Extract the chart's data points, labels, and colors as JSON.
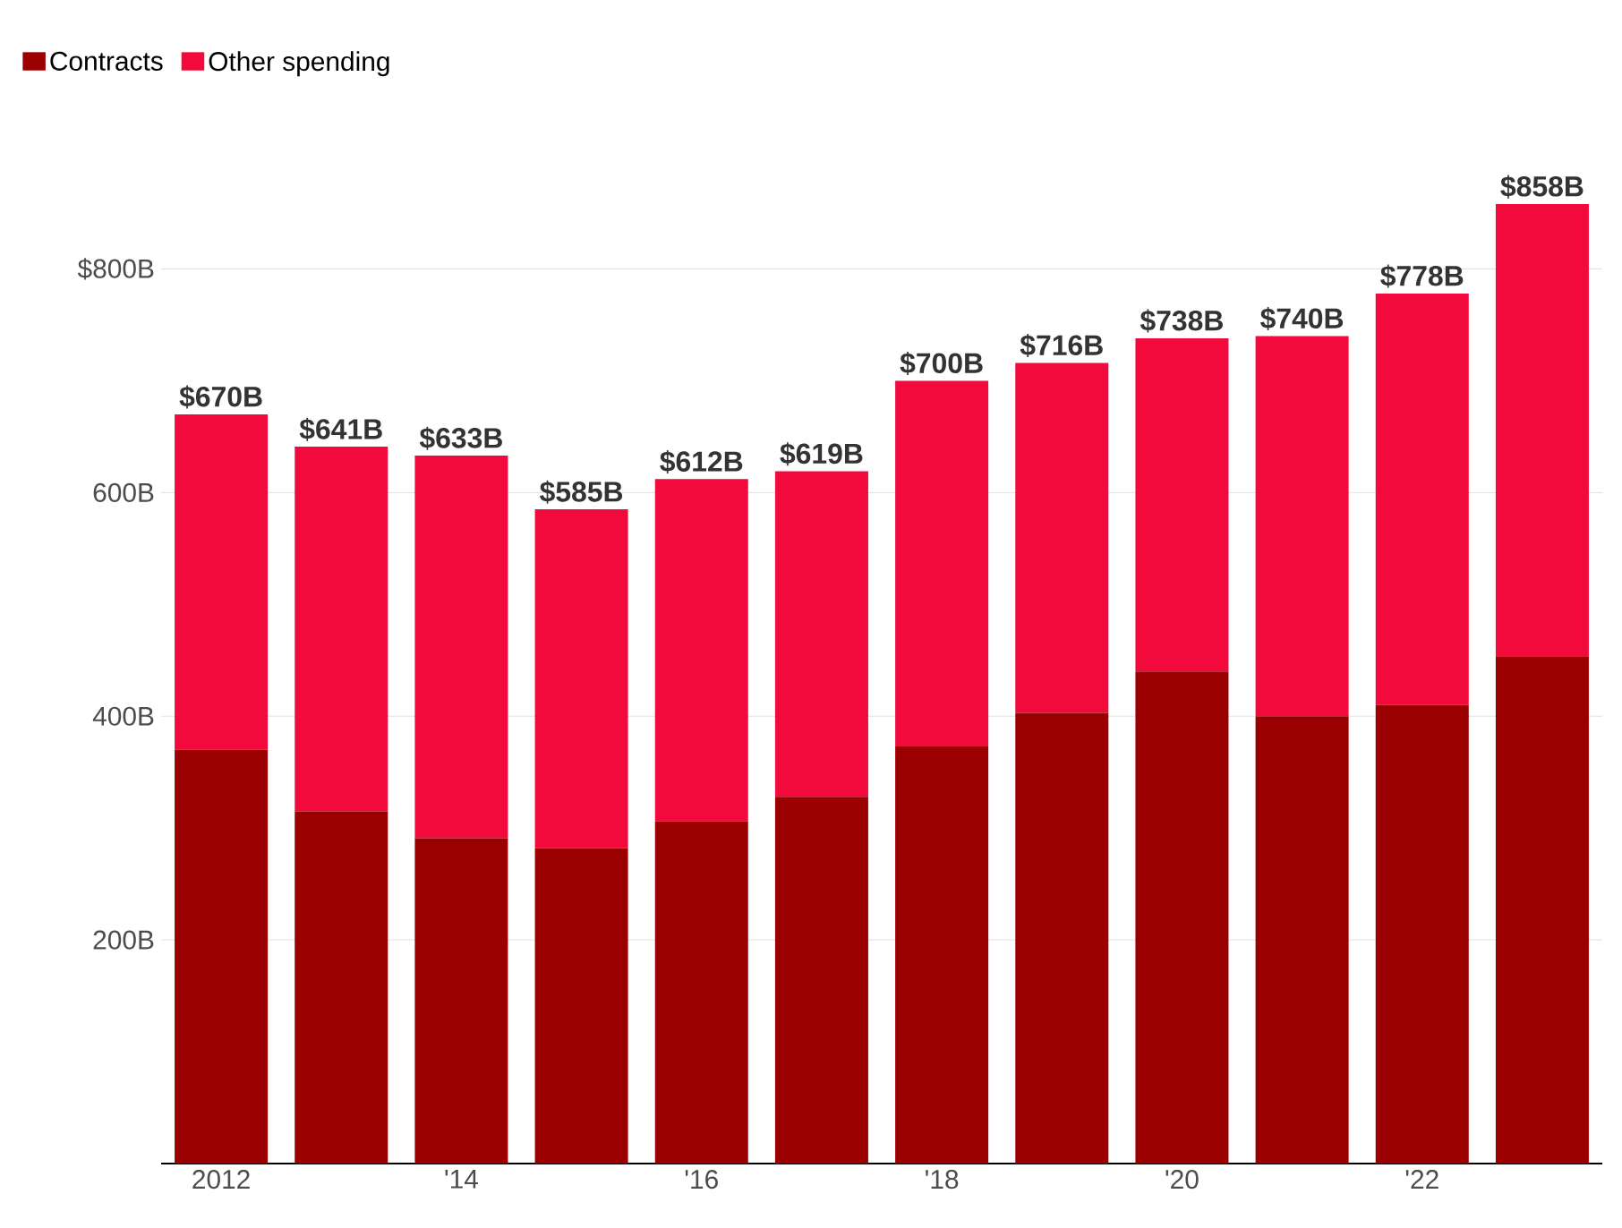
{
  "chart_data": {
    "type": "bar",
    "stacked": true,
    "categories": [
      "2012",
      null,
      "'14",
      null,
      "'16",
      null,
      "'18",
      null,
      "'20",
      null,
      "'22",
      null
    ],
    "series": [
      {
        "name": "Contracts",
        "color": "#9b0000",
        "values": [
          370,
          315,
          291,
          282,
          306,
          328,
          373,
          403,
          440,
          400,
          410,
          453
        ]
      },
      {
        "name": "Other spending",
        "color": "#f20a3c",
        "values": [
          300,
          326,
          342,
          303,
          306,
          291,
          327,
          313,
          298,
          340,
          368,
          405
        ]
      }
    ],
    "totals": [
      "$670B",
      "$641B",
      "$633B",
      "$585B",
      "$612B",
      "$619B",
      "$700B",
      "$716B",
      "$738B",
      "$740B",
      "$778B",
      "$858B"
    ],
    "yticks": [
      {
        "value": 200,
        "label": "200B"
      },
      {
        "value": 400,
        "label": "400B"
      },
      {
        "value": 600,
        "label": "600B"
      },
      {
        "value": 800,
        "label": "$800B"
      }
    ],
    "ylim": [
      0,
      858
    ],
    "grid": "y",
    "legend": "top left"
  }
}
